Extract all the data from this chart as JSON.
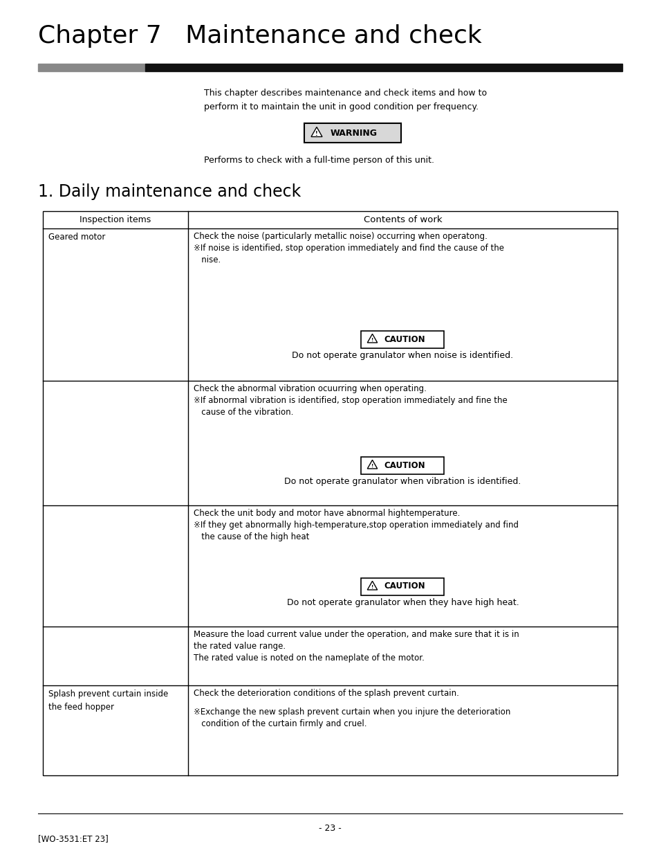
{
  "page_width": 9.54,
  "page_height": 12.35,
  "bg_color": "#ffffff",
  "chapter_title": "Chapter 7   Maintenance and check",
  "chapter_title_size": 26,
  "header_bar_left_color": "#888888",
  "header_bar_right_color": "#111111",
  "intro_text_line1": "This chapter describes maintenance and check items and how to",
  "intro_text_line2": "perform it to maintain the unit in good condition per frequency.",
  "warning_label": "WARNING",
  "warning_subtext": "Performs to check with a full-time person of this unit.",
  "section_title": "1. Daily maintenance and check",
  "section_title_size": 17,
  "col1_header": "Inspection items",
  "col2_header": "Contents of work",
  "row1_col1": "Geared motor",
  "row1_col2_lines": [
    "Check the noise (particularly metallic noise) occurring when operatong.",
    "※If noise is identified, stop operation immediately and find the cause of the",
    "   nise."
  ],
  "caution1_text": "Do not operate granulator when noise is identified.",
  "row2_col2_lines": [
    "Check the abnormal vibration ocuurring when operating.",
    "※If abnormal vibration is identified, stop operation immediately and fine the",
    "   cause of the vibration."
  ],
  "caution2_text": "Do not operate granulator when vibration is identified.",
  "row3_col2_lines": [
    "Check the unit body and motor have abnormal hightemperature.",
    "※If they get abnormally high-temperature,stop operation immediately and find",
    "   the cause of the high heat"
  ],
  "caution3_text": "Do not operate granulator when they have high heat.",
  "row4_col2_lines": [
    "Measure the load current value under the operation, and make sure that it is in",
    "the rated value range.",
    "The rated value is noted on the nameplate of the motor."
  ],
  "row5_col1": "Splash prevent curtain inside\nthe feed hopper",
  "row5_col2_lines": [
    "Check the deterioration conditions of the splash prevent curtain.",
    "",
    "※Exchange the new splash prevent curtain when you injure the deterioration",
    "   condition of the curtain firmly and cruel."
  ],
  "footer_line": "- 23 -",
  "footer_ref": "[WO-3531:ET 23]"
}
